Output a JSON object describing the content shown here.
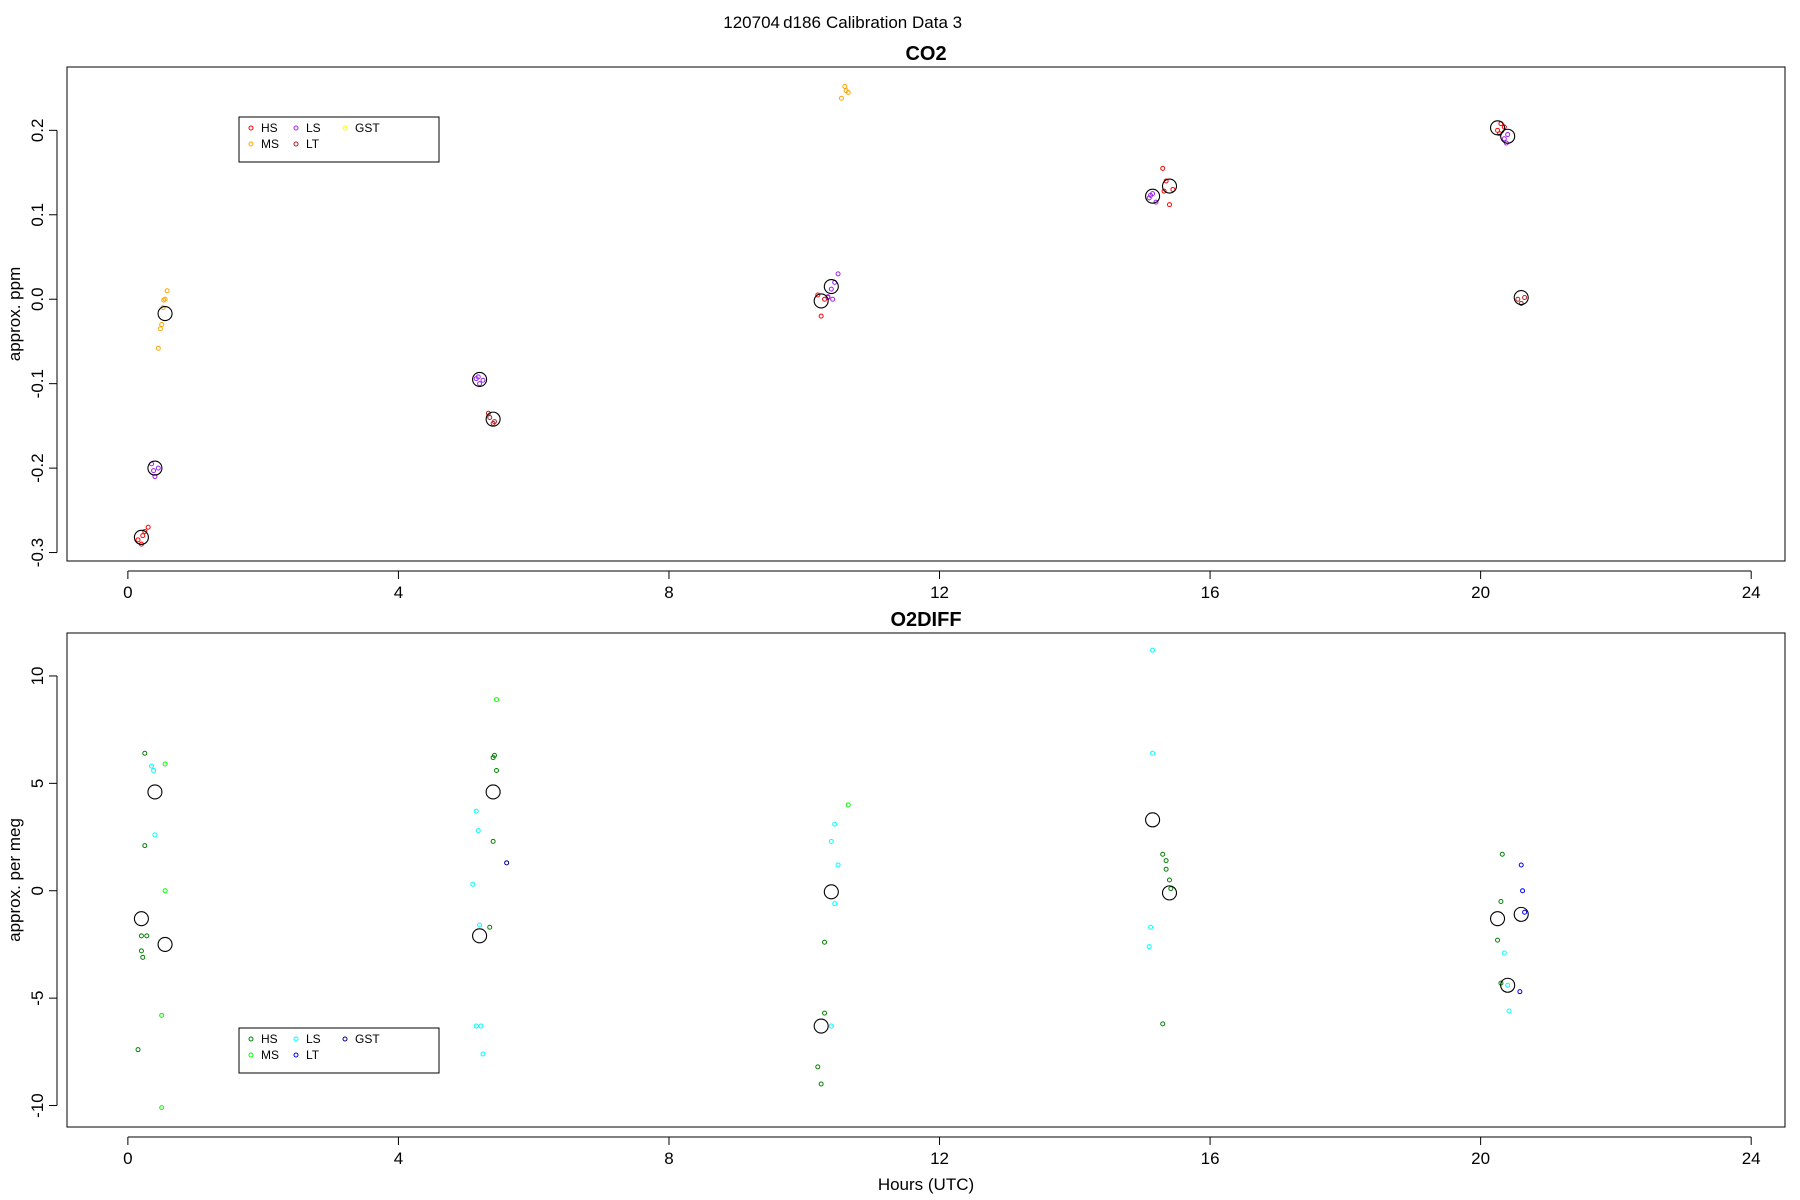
{
  "figure": {
    "title_parts": [
      "120704",
      "d186",
      "Calibration Data 3"
    ],
    "xlabel": "Hours (UTC)"
  },
  "chart_data": [
    {
      "type": "scatter",
      "title": "CO2",
      "xlabel": "",
      "ylabel": "approx. ppm",
      "xlim": [
        -0.9,
        24.5
      ],
      "ylim": [
        -0.31,
        0.275
      ],
      "xticks": [
        0,
        4,
        8,
        12,
        16,
        20,
        24
      ],
      "yticks": [
        -0.3,
        -0.2,
        -0.1,
        0.0,
        0.1,
        0.2
      ],
      "ytick_labels": [
        "-0.3",
        "-0.2",
        "-0.1",
        "0.0",
        "0.1",
        "0.2"
      ],
      "grid": false,
      "legend": {
        "position": "top-left",
        "entries": [
          {
            "name": "HS",
            "color": "#ff0000"
          },
          {
            "name": "MS",
            "color": "#ffa500"
          },
          {
            "name": "LS",
            "color": "#a020f0"
          },
          {
            "name": "LT",
            "color": "#b22222"
          },
          {
            "name": "GST",
            "color": "#ffff00"
          }
        ]
      },
      "series": [
        {
          "name": "HS",
          "color": "#ff0000",
          "points": [
            [
              0.15,
              -0.285
            ],
            [
              0.2,
              -0.29
            ],
            [
              0.25,
              -0.275
            ],
            [
              0.3,
              -0.27
            ],
            [
              0.22,
              -0.28
            ],
            [
              10.2,
              0.005
            ],
            [
              10.25,
              -0.02
            ],
            [
              10.3,
              0.0
            ],
            [
              10.35,
              0.002
            ],
            [
              15.3,
              0.155
            ],
            [
              15.35,
              0.14
            ],
            [
              15.4,
              0.112
            ],
            [
              15.45,
              0.13
            ],
            [
              15.32,
              0.128
            ],
            [
              20.25,
              0.2
            ],
            [
              20.3,
              0.208
            ],
            [
              20.35,
              0.204
            ],
            [
              20.28,
              0.196
            ]
          ]
        },
        {
          "name": "MS",
          "color": "#ffa500",
          "points": [
            [
              0.45,
              -0.058
            ],
            [
              0.48,
              -0.035
            ],
            [
              0.5,
              -0.03
            ],
            [
              0.52,
              -0.01
            ],
            [
              0.55,
              0.0
            ],
            [
              0.58,
              0.01
            ],
            [
              0.53,
              -0.001
            ],
            [
              10.55,
              0.238
            ],
            [
              10.6,
              0.252
            ],
            [
              10.62,
              0.247
            ],
            [
              10.65,
              0.245
            ]
          ]
        },
        {
          "name": "LS",
          "color": "#a020f0",
          "points": [
            [
              0.35,
              -0.195
            ],
            [
              0.4,
              -0.21
            ],
            [
              0.45,
              -0.2
            ],
            [
              0.38,
              -0.203
            ],
            [
              5.15,
              -0.094
            ],
            [
              5.2,
              -0.1
            ],
            [
              5.25,
              -0.096
            ],
            [
              5.18,
              -0.092
            ],
            [
              10.35,
              0.003
            ],
            [
              10.4,
              0.012
            ],
            [
              10.45,
              0.02
            ],
            [
              10.5,
              0.03
            ],
            [
              10.42,
              0.0
            ],
            [
              15.1,
              0.12
            ],
            [
              15.15,
              0.125
            ],
            [
              15.2,
              0.115
            ],
            [
              15.12,
              0.123
            ],
            [
              20.35,
              0.19
            ],
            [
              20.4,
              0.195
            ],
            [
              20.38,
              0.185
            ]
          ]
        },
        {
          "name": "LT",
          "color": "#b22222",
          "points": [
            [
              5.35,
              -0.14
            ],
            [
              5.4,
              -0.147
            ],
            [
              5.42,
              -0.145
            ],
            [
              5.33,
              -0.135
            ],
            [
              20.55,
              0.0
            ],
            [
              20.6,
              -0.005
            ],
            [
              20.65,
              0.002
            ]
          ]
        },
        {
          "name": "GST",
          "color": "#ffff00",
          "points": []
        },
        {
          "name": "means",
          "color": "#000000",
          "large": true,
          "points": [
            [
              0.2,
              -0.282
            ],
            [
              0.55,
              -0.017
            ],
            [
              0.4,
              -0.2
            ],
            [
              5.2,
              -0.095
            ],
            [
              5.4,
              -0.142
            ],
            [
              10.25,
              -0.002
            ],
            [
              10.4,
              0.015
            ],
            [
              15.15,
              0.122
            ],
            [
              15.4,
              0.134
            ],
            [
              20.25,
              0.203
            ],
            [
              20.4,
              0.193
            ],
            [
              20.6,
              0.002
            ]
          ]
        }
      ]
    },
    {
      "type": "scatter",
      "title": "O2DIFF",
      "xlabel": "Hours (UTC)",
      "ylabel": "approx. per meg",
      "xlim": [
        -0.9,
        24.5
      ],
      "ylim": [
        -11,
        12
      ],
      "xticks": [
        0,
        4,
        8,
        12,
        16,
        20,
        24
      ],
      "yticks": [
        -10,
        -5,
        0,
        5,
        10
      ],
      "ytick_labels": [
        "-10",
        "-5",
        "0",
        "5",
        "10"
      ],
      "grid": false,
      "legend": {
        "position": "bottom-left",
        "entries": [
          {
            "name": "HS",
            "color": "#008000"
          },
          {
            "name": "MS",
            "color": "#00ff00"
          },
          {
            "name": "LS",
            "color": "#00ffff"
          },
          {
            "name": "LT",
            "color": "#0000ff"
          },
          {
            "name": "GST",
            "color": "#00008b"
          }
        ]
      },
      "series": [
        {
          "name": "HS",
          "color": "#008000",
          "points": [
            [
              0.15,
              -7.4
            ],
            [
              0.2,
              -2.8
            ],
            [
              0.22,
              -3.1
            ],
            [
              0.2,
              -2.1
            ],
            [
              0.25,
              6.4
            ],
            [
              0.25,
              2.1
            ],
            [
              0.28,
              -2.1
            ],
            [
              5.4,
              6.2
            ],
            [
              5.42,
              6.3
            ],
            [
              5.45,
              5.6
            ],
            [
              5.4,
              2.3
            ],
            [
              5.35,
              -1.7
            ],
            [
              10.2,
              -8.2
            ],
            [
              10.25,
              -9.0
            ],
            [
              10.3,
              -5.7
            ],
            [
              10.3,
              -2.4
            ],
            [
              15.3,
              1.7
            ],
            [
              15.35,
              1.4
            ],
            [
              15.35,
              1.0
            ],
            [
              15.4,
              0.5
            ],
            [
              15.42,
              0.1
            ],
            [
              15.3,
              -6.2
            ],
            [
              20.3,
              -0.5
            ],
            [
              20.32,
              1.7
            ],
            [
              20.25,
              -2.3
            ],
            [
              20.3,
              -4.3
            ]
          ]
        },
        {
          "name": "MS",
          "color": "#00ff00",
          "points": [
            [
              0.55,
              5.9
            ],
            [
              0.55,
              0.0
            ],
            [
              0.5,
              -5.8
            ],
            [
              0.5,
              -10.1
            ],
            [
              5.45,
              8.9
            ],
            [
              10.65,
              4.0
            ]
          ]
        },
        {
          "name": "LS",
          "color": "#00ffff",
          "points": [
            [
              0.35,
              5.8
            ],
            [
              0.38,
              5.6
            ],
            [
              0.4,
              2.6
            ],
            [
              5.15,
              3.7
            ],
            [
              5.18,
              2.8
            ],
            [
              5.1,
              0.3
            ],
            [
              5.2,
              -1.6
            ],
            [
              5.15,
              -6.3
            ],
            [
              5.22,
              -6.3
            ],
            [
              5.25,
              -7.6
            ],
            [
              10.45,
              3.1
            ],
            [
              10.4,
              2.3
            ],
            [
              10.5,
              1.2
            ],
            [
              10.45,
              -0.6
            ],
            [
              10.4,
              -6.3
            ],
            [
              15.15,
              11.2
            ],
            [
              15.15,
              6.4
            ],
            [
              15.12,
              -1.7
            ],
            [
              15.1,
              -2.6
            ],
            [
              20.35,
              -2.9
            ],
            [
              20.4,
              -4.4
            ],
            [
              20.42,
              -5.6
            ]
          ]
        },
        {
          "name": "LT",
          "color": "#0000ff",
          "points": [
            [
              20.6,
              1.2
            ],
            [
              20.62,
              0.0
            ],
            [
              20.65,
              -1.0
            ],
            [
              20.58,
              -4.7
            ]
          ]
        },
        {
          "name": "GST",
          "color": "#00008b",
          "points": [
            [
              5.6,
              1.3
            ]
          ]
        },
        {
          "name": "means",
          "color": "#000000",
          "large": true,
          "points": [
            [
              0.2,
              -1.3
            ],
            [
              0.55,
              -2.5
            ],
            [
              0.4,
              4.6
            ],
            [
              5.4,
              4.6
            ],
            [
              5.2,
              -2.1
            ],
            [
              10.4,
              -0.05
            ],
            [
              10.25,
              -6.3
            ],
            [
              15.15,
              3.3
            ],
            [
              15.4,
              -0.1
            ],
            [
              20.25,
              -1.3
            ],
            [
              20.4,
              -4.4
            ],
            [
              20.6,
              -1.1
            ]
          ]
        }
      ]
    }
  ]
}
